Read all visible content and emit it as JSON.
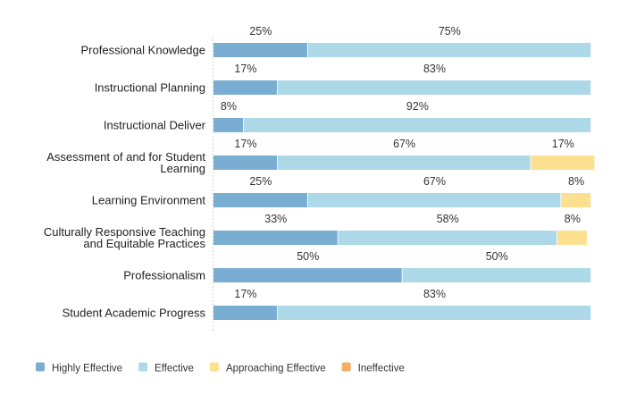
{
  "chart_data": {
    "type": "bar",
    "orientation": "horizontal",
    "stacked": true,
    "normalized_percent": true,
    "categories": [
      "Professional Knowledge",
      "Instructional Planning",
      "Instructional Deliver",
      "Assessment of and for Student Learning",
      "Learning Environment",
      "Culturally Responsive Teaching and Equitable Practices",
      "Professionalism",
      "Student Academic Progress"
    ],
    "category_label_lines": [
      [
        "Professional Knowledge"
      ],
      [
        "Instructional Planning"
      ],
      [
        "Instructional Deliver"
      ],
      [
        "Assessment of and for Student",
        "Learning"
      ],
      [
        "Learning Environment"
      ],
      [
        "Culturally Responsive Teaching",
        "and Equitable Practices"
      ],
      [
        "Professionalism"
      ],
      [
        "Student Academic Progress"
      ]
    ],
    "series": [
      {
        "name": "Highly Effective",
        "color": "#79add2",
        "values": [
          25,
          17,
          8,
          17,
          25,
          33,
          50,
          17
        ],
        "labels": [
          "25%",
          "17%",
          "8%",
          "17%",
          "25%",
          "33%",
          "50%",
          "17%"
        ]
      },
      {
        "name": "Effective",
        "color": "#acd8e8",
        "values": [
          75,
          83,
          92,
          67,
          67,
          58,
          50,
          83
        ],
        "labels": [
          "75%",
          "83%",
          "92%",
          "67%",
          "67%",
          "58%",
          "50%",
          "83%"
        ]
      },
      {
        "name": "Approaching Effective",
        "color": "#fde08f",
        "values": [
          0,
          0,
          0,
          17,
          8,
          8,
          0,
          0
        ],
        "labels": [
          "",
          "",
          "",
          "17%",
          "8%",
          "8%",
          "",
          ""
        ]
      },
      {
        "name": "Ineffective",
        "color": "#f6ad63",
        "values": [
          0,
          0,
          0,
          0,
          0,
          0,
          0,
          0
        ],
        "labels": [
          "",
          "",
          "",
          "",
          "",
          "",
          "",
          ""
        ]
      }
    ],
    "title": "",
    "xlabel": "",
    "ylabel": "",
    "legend_position": "bottom-left"
  }
}
